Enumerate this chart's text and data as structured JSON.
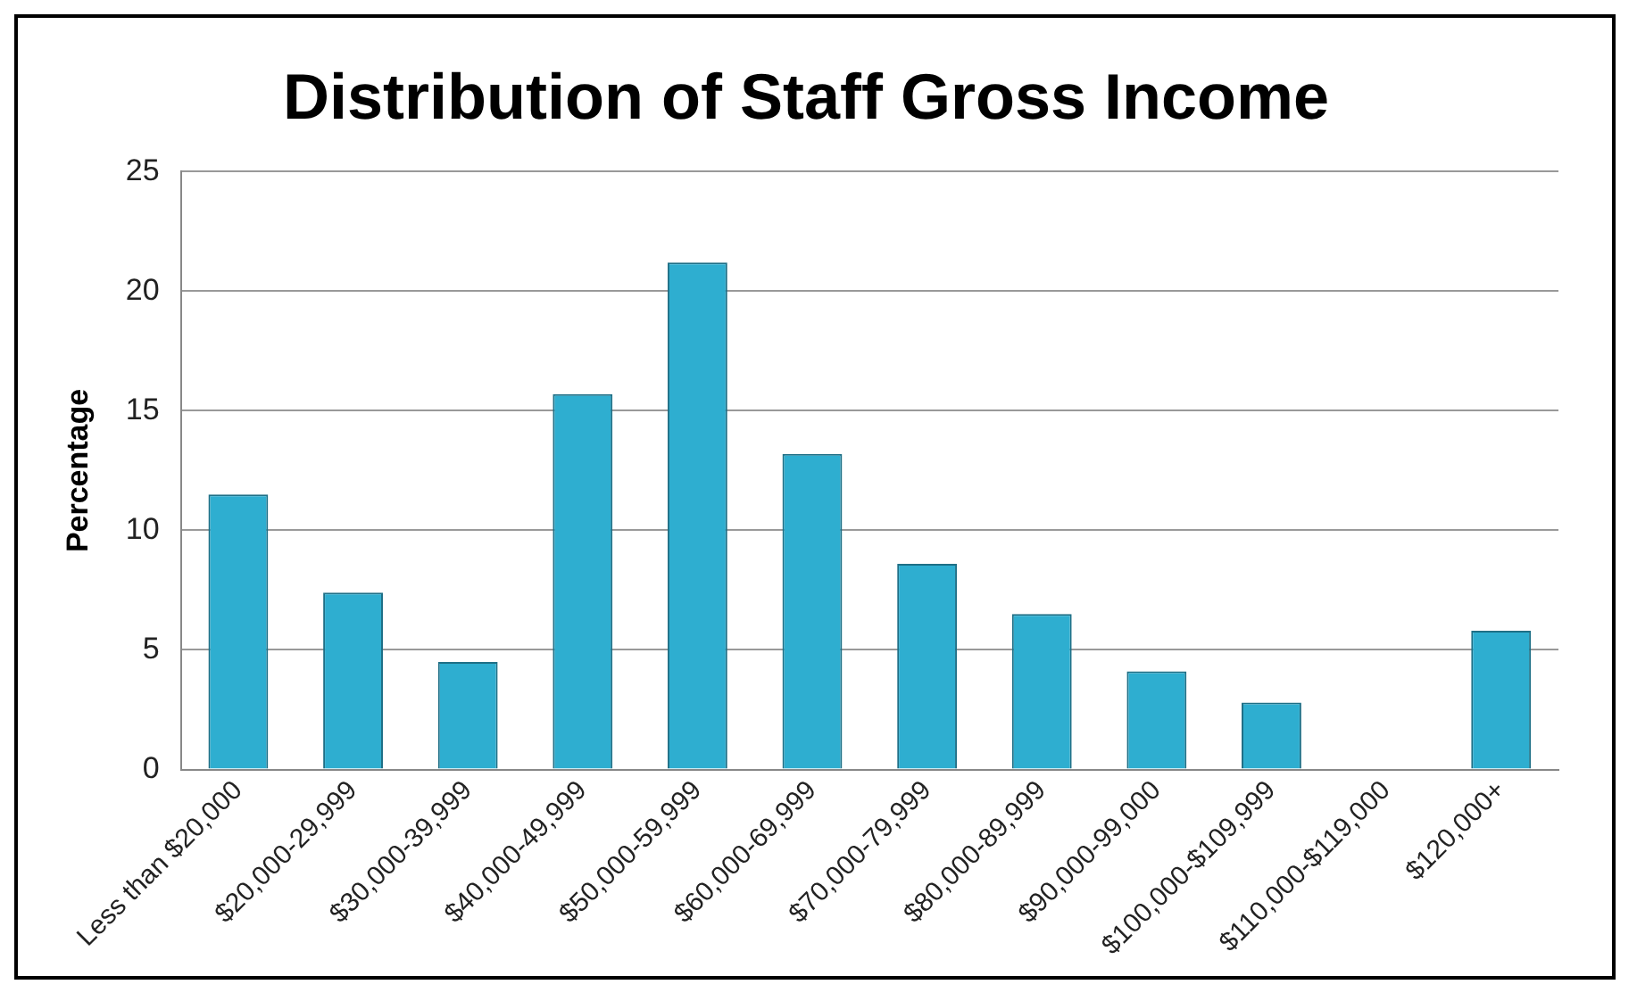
{
  "chart_data": {
    "type": "bar",
    "title": "Distribution of Staff Gross Income",
    "ylabel": "Percentage",
    "categories": [
      "Less than $20,000",
      "$20,000-29,999",
      "$30,000-39,999",
      "$40,000-49,999",
      "$50,000-59,999",
      "$60,000-69,999",
      "$70,000-79,999",
      "$80,000-89,999",
      "$90,000-99,000",
      "$100,000-$109,999",
      "$110,000-$119,000",
      "$120,000+"
    ],
    "values": [
      11.5,
      7.4,
      4.5,
      15.7,
      21.2,
      13.2,
      8.6,
      6.5,
      4.1,
      2.8,
      0,
      5.8
    ],
    "color": "#2eaed0",
    "ylim": [
      0,
      25
    ],
    "yticks": [
      0,
      5,
      10,
      15,
      20,
      25
    ],
    "grid": "y",
    "legend": false
  }
}
